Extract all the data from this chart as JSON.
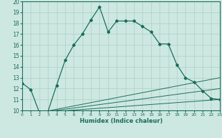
{
  "xlabel": "Humidex (Indice chaleur)",
  "bg_color": "#cde8e0",
  "line_color": "#1a6b5a",
  "grid_color": "#aacfc5",
  "xlim": [
    0,
    23
  ],
  "ylim": [
    10,
    20
  ],
  "xticks": [
    0,
    1,
    2,
    3,
    4,
    5,
    6,
    7,
    8,
    9,
    10,
    11,
    12,
    13,
    14,
    15,
    16,
    17,
    18,
    19,
    20,
    21,
    22,
    23
  ],
  "yticks": [
    10,
    11,
    12,
    13,
    14,
    15,
    16,
    17,
    18,
    19,
    20
  ],
  "line1_x": [
    0,
    1,
    2,
    3,
    4,
    5,
    6,
    7,
    8,
    9,
    10,
    11,
    12,
    13,
    14,
    15,
    16,
    17,
    18,
    19,
    20,
    21,
    22,
    23
  ],
  "line1_y": [
    12.5,
    11.9,
    9.8,
    9.9,
    12.3,
    14.6,
    16.0,
    17.0,
    18.3,
    19.5,
    17.2,
    18.2,
    18.2,
    18.2,
    17.7,
    17.2,
    16.1,
    16.1,
    14.2,
    13.0,
    12.6,
    11.8,
    11.1,
    11.0
  ],
  "line2_x": [
    2,
    23
  ],
  "line2_y": [
    9.8,
    11.0
  ],
  "line3_x": [
    2,
    23
  ],
  "line3_y": [
    9.8,
    12.0
  ],
  "line4_x": [
    2,
    23
  ],
  "line4_y": [
    9.8,
    13.0
  ]
}
